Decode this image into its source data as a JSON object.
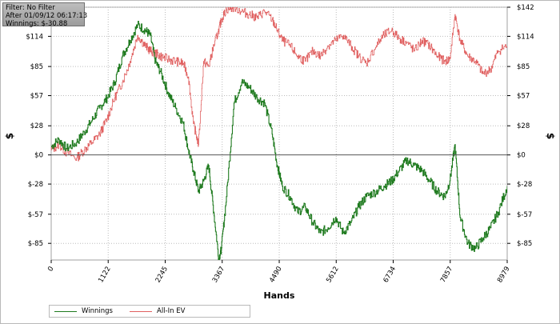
{
  "info_box": {
    "filter": "Filter: No Filter",
    "after": "After 01/09/12 06:17:13",
    "winnings": "Winnings: $-30.88"
  },
  "chart_data": {
    "type": "line",
    "xlabel": "Hands",
    "ylabel": "$",
    "xlim": [
      0,
      8979
    ],
    "ylim": [
      -101,
      142
    ],
    "x_ticks": [
      0,
      1122,
      2245,
      3367,
      4490,
      5612,
      6734,
      7857,
      8979
    ],
    "y_ticks": [
      -85,
      -57,
      -28,
      0,
      28,
      57,
      85,
      114,
      142
    ],
    "y_tick_labels": [
      "$-85",
      "$-57",
      "$-28",
      "$0",
      "$28",
      "$57",
      "$85",
      "$114",
      "$142"
    ],
    "grid": true,
    "legend_position": "bottom-left",
    "series": [
      {
        "name": "Winnings",
        "color": "#1e7a1e",
        "x": [
          0,
          150,
          300,
          500,
          650,
          800,
          950,
          1100,
          1250,
          1400,
          1550,
          1700,
          1850,
          1950,
          2050,
          2150,
          2300,
          2450,
          2600,
          2700,
          2800,
          2900,
          3000,
          3100,
          3200,
          3300,
          3350,
          3450,
          3600,
          3750,
          3900,
          4050,
          4200,
          4350,
          4450,
          4550,
          4700,
          4850,
          5000,
          5150,
          5300,
          5450,
          5600,
          5750,
          5900,
          6050,
          6200,
          6400,
          6550,
          6700,
          6850,
          7000,
          7150,
          7300,
          7450,
          7600,
          7750,
          7850,
          7950,
          8050,
          8200,
          8350,
          8500,
          8650,
          8800,
          8979
        ],
        "y": [
          8,
          15,
          6,
          12,
          22,
          33,
          45,
          55,
          70,
          95,
          110,
          125,
          120,
          115,
          90,
          80,
          60,
          45,
          30,
          5,
          -15,
          -35,
          -25,
          -10,
          -55,
          -100,
          -90,
          -40,
          50,
          70,
          65,
          55,
          50,
          20,
          -10,
          -30,
          -40,
          -55,
          -50,
          -65,
          -75,
          -70,
          -60,
          -75,
          -65,
          -50,
          -40,
          -35,
          -30,
          -25,
          -15,
          -5,
          -10,
          -15,
          -25,
          -35,
          -40,
          -25,
          10,
          -60,
          -85,
          -90,
          -80,
          -70,
          -55,
          -30
        ]
      },
      {
        "name": "All-In EV",
        "color": "#e06060",
        "x": [
          0,
          150,
          300,
          500,
          650,
          800,
          950,
          1100,
          1250,
          1400,
          1550,
          1700,
          1850,
          1950,
          2050,
          2150,
          2300,
          2450,
          2600,
          2700,
          2800,
          2900,
          3000,
          3100,
          3200,
          3300,
          3350,
          3450,
          3600,
          3750,
          3900,
          4050,
          4200,
          4350,
          4450,
          4550,
          4700,
          4850,
          5000,
          5150,
          5300,
          5450,
          5600,
          5750,
          5900,
          6050,
          6200,
          6400,
          6550,
          6700,
          6850,
          7000,
          7150,
          7300,
          7450,
          7600,
          7750,
          7850,
          7950,
          8050,
          8200,
          8350,
          8500,
          8650,
          8800,
          8979
        ],
        "y": [
          5,
          10,
          2,
          -3,
          5,
          12,
          20,
          35,
          55,
          70,
          90,
          115,
          105,
          100,
          98,
          95,
          92,
          90,
          88,
          75,
          30,
          10,
          90,
          85,
          105,
          120,
          130,
          140,
          142,
          138,
          135,
          132,
          138,
          130,
          120,
          110,
          105,
          95,
          90,
          100,
          95,
          105,
          110,
          115,
          105,
          95,
          88,
          105,
          115,
          120,
          112,
          108,
          100,
          110,
          105,
          95,
          90,
          92,
          135,
          110,
          95,
          90,
          78,
          82,
          100,
          105
        ]
      }
    ]
  },
  "legend": {
    "winnings": "Winnings",
    "all_in_ev": "All-In EV"
  }
}
